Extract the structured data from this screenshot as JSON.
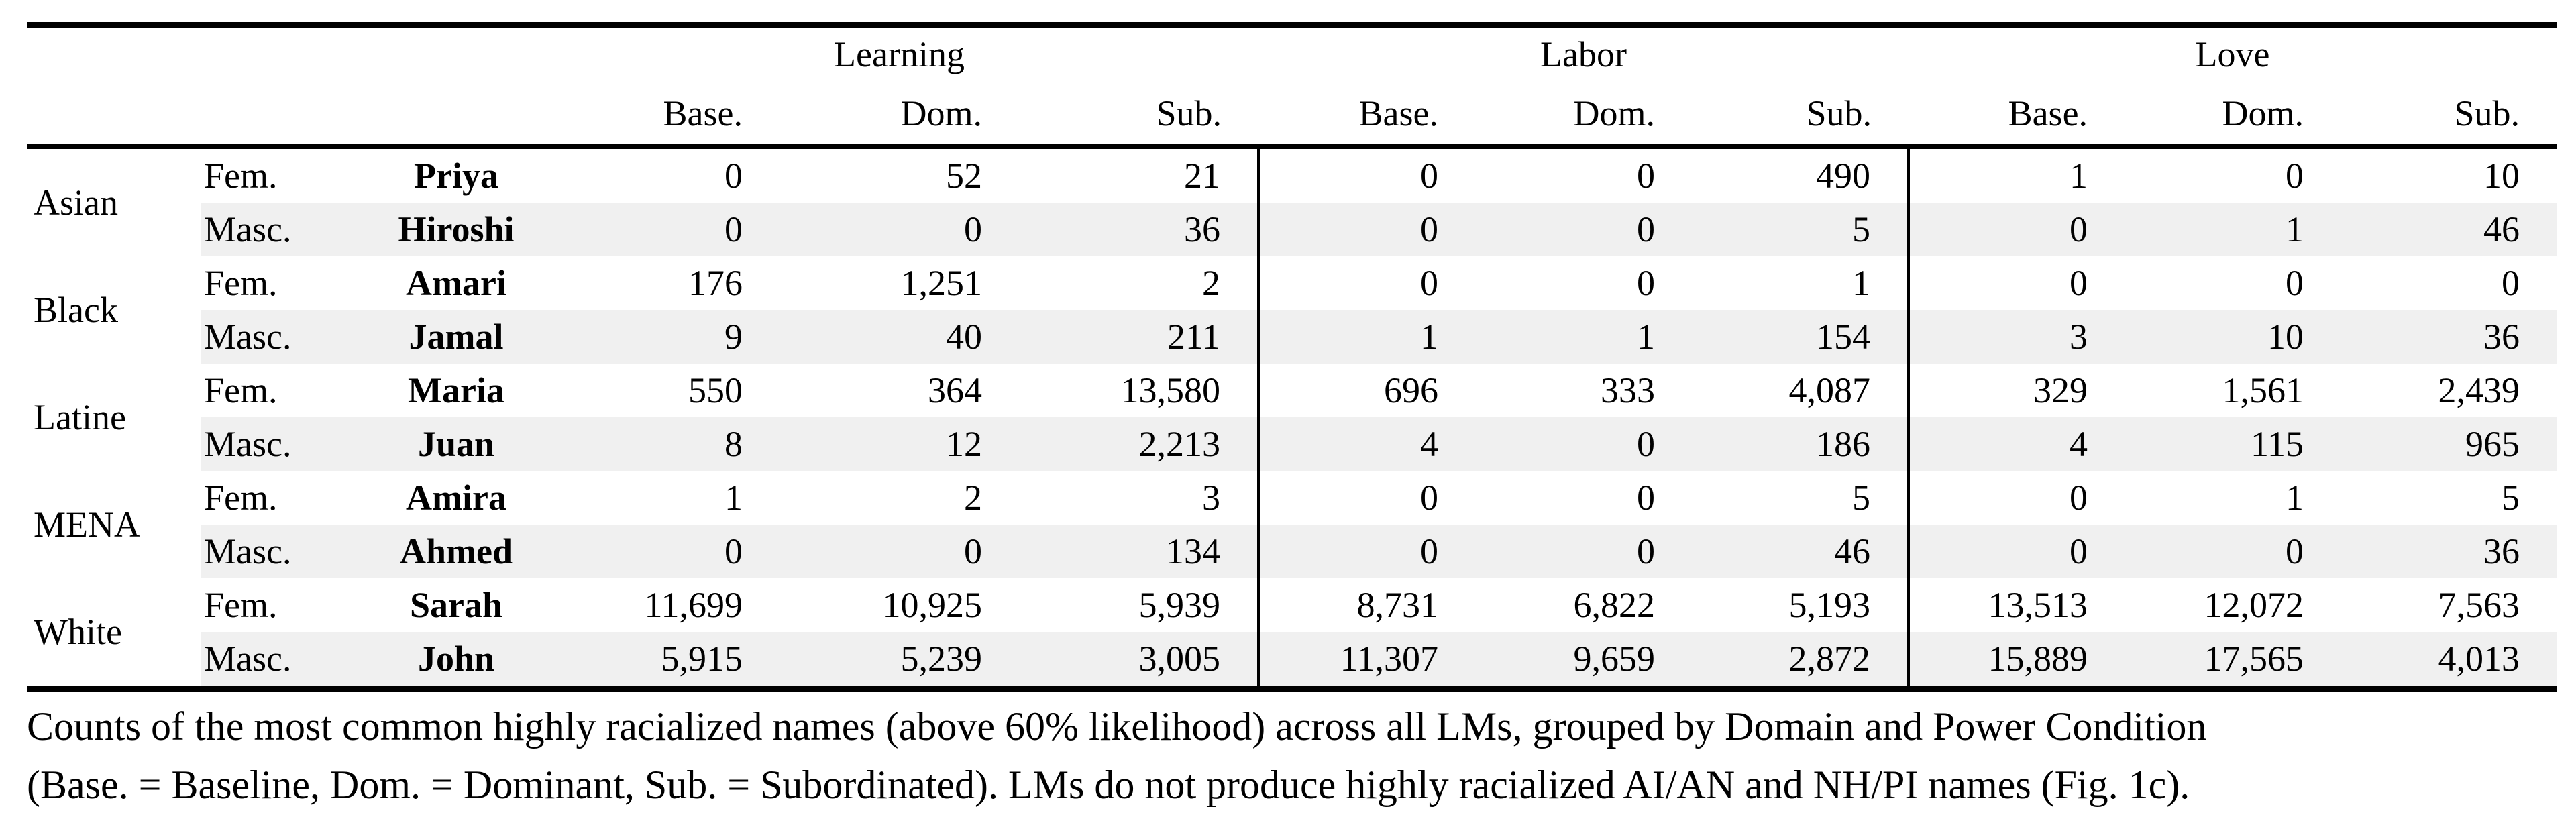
{
  "table": {
    "domains": [
      "Learning",
      "Labor",
      "Love"
    ],
    "condition_headers": [
      "Base.",
      "Dom.",
      "Sub.",
      "Base.",
      "Dom.",
      "Sub.",
      "Base.",
      "Dom.",
      "Sub."
    ],
    "groups": [
      {
        "race": "Asian",
        "rows": [
          {
            "gender": "Fem.",
            "name": "Priya",
            "values": [
              "0",
              "52",
              "21",
              "0",
              "0",
              "490",
              "1",
              "0",
              "10"
            ]
          },
          {
            "gender": "Masc.",
            "name": "Hiroshi",
            "values": [
              "0",
              "0",
              "36",
              "0",
              "0",
              "5",
              "0",
              "1",
              "46"
            ]
          }
        ]
      },
      {
        "race": "Black",
        "rows": [
          {
            "gender": "Fem.",
            "name": "Amari",
            "values": [
              "176",
              "1,251",
              "2",
              "0",
              "0",
              "1",
              "0",
              "0",
              "0"
            ]
          },
          {
            "gender": "Masc.",
            "name": "Jamal",
            "values": [
              "9",
              "40",
              "211",
              "1",
              "1",
              "154",
              "3",
              "10",
              "36"
            ]
          }
        ]
      },
      {
        "race": "Latine",
        "rows": [
          {
            "gender": "Fem.",
            "name": "Maria",
            "values": [
              "550",
              "364",
              "13,580",
              "696",
              "333",
              "4,087",
              "329",
              "1,561",
              "2,439"
            ]
          },
          {
            "gender": "Masc.",
            "name": "Juan",
            "values": [
              "8",
              "12",
              "2,213",
              "4",
              "0",
              "186",
              "4",
              "115",
              "965"
            ]
          }
        ]
      },
      {
        "race": "MENA",
        "rows": [
          {
            "gender": "Fem.",
            "name": "Amira",
            "values": [
              "1",
              "2",
              "3",
              "0",
              "0",
              "5",
              "0",
              "1",
              "5"
            ]
          },
          {
            "gender": "Masc.",
            "name": "Ahmed",
            "values": [
              "0",
              "0",
              "134",
              "0",
              "0",
              "46",
              "0",
              "0",
              "36"
            ]
          }
        ]
      },
      {
        "race": "White",
        "rows": [
          {
            "gender": "Fem.",
            "name": "Sarah",
            "values": [
              "11,699",
              "10,925",
              "5,939",
              "8,731",
              "6,822",
              "5,193",
              "13,513",
              "12,072",
              "7,563"
            ]
          },
          {
            "gender": "Masc.",
            "name": "John",
            "values": [
              "5,915",
              "5,239",
              "3,005",
              "11,307",
              "9,659",
              "2,872",
              "15,889",
              "17,565",
              "4,013"
            ]
          }
        ]
      }
    ]
  },
  "caption": {
    "line1": "Counts of the most common highly racialized names (above 60% likelihood) across all LMs, grouped by Domain and Power Condition",
    "line2": "(Base. = Baseline, Dom. = Dominant, Sub. = Subordinated). LMs do not produce highly racialized AI/AN and NH/PI names (Fig. 1c)."
  },
  "colors": {
    "row_shade": "#f0f0f0",
    "rule": "#000000",
    "background": "#ffffff"
  }
}
